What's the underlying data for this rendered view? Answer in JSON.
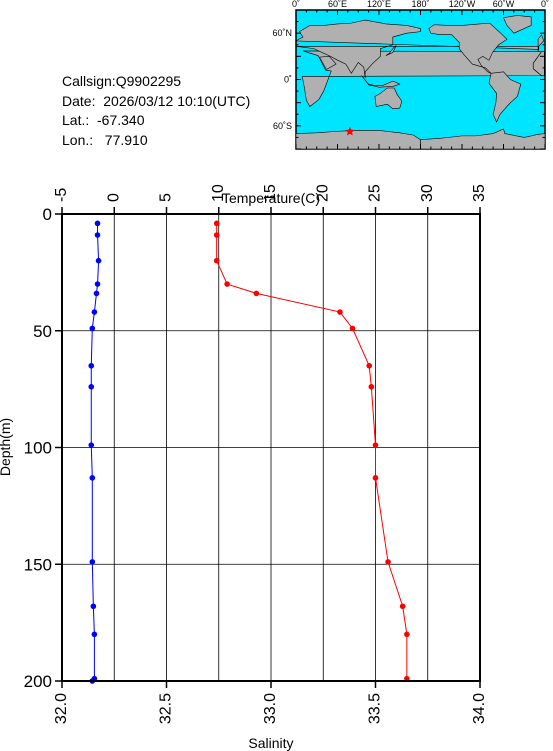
{
  "station": {
    "callsign": "Callsign:Q9902295",
    "date": "Date:  2026/03/12 10:10(UTC)",
    "lat": "Lat.:  -67.340",
    "lon": "Lon.:   77.910"
  },
  "map": {
    "lon_labels": [
      "0˚",
      "60˚E",
      "120˚E",
      "180˚",
      "120˚W",
      "60˚W",
      "0˚"
    ],
    "lat_labels": [
      "60˚N",
      "0˚",
      "60˚S"
    ],
    "colors": {
      "ocean": "#00e5ff",
      "land": "#b0b0b0",
      "marker": "#ff0000"
    },
    "marker": {
      "lat": -67.34,
      "lon": 77.91
    }
  },
  "chart_data": {
    "type": "line",
    "ylabel": "Depth(m)",
    "ylim": [
      200,
      0
    ],
    "yticks": [
      0,
      50,
      100,
      150,
      200
    ],
    "y_reversed": true,
    "grid": true,
    "axes": {
      "temperature": {
        "label": "Temperature(C)",
        "position": "top",
        "lim": [
          -5,
          35
        ],
        "ticks": [
          -5,
          0,
          5,
          10,
          15,
          20,
          25,
          30,
          35
        ]
      },
      "salinity": {
        "label": "Salinity",
        "position": "bottom",
        "lim": [
          32.0,
          34.0
        ],
        "ticks": [
          "32.0",
          "32.5",
          "33.0",
          "33.5",
          "34.0"
        ]
      }
    },
    "series": [
      {
        "axis": "temperature",
        "color": "#0000ff",
        "x": [
          -1.6,
          -1.6,
          -1.5,
          -1.6,
          -1.7,
          -1.9,
          -2.1,
          -2.2,
          -2.2,
          -2.2,
          -2.1,
          -2.1,
          -2.0,
          -1.9,
          -1.9,
          -2.1
        ],
        "y": [
          4,
          9,
          20,
          30,
          34,
          42,
          49,
          65,
          74,
          99,
          113,
          149,
          168,
          180,
          199,
          200
        ]
      },
      {
        "axis": "salinity",
        "color": "#ff0000",
        "x": [
          32.74,
          32.74,
          32.74,
          32.79,
          32.93,
          33.33,
          33.39,
          33.47,
          33.48,
          33.5,
          33.5,
          33.56,
          33.63,
          33.65,
          33.65
        ],
        "y": [
          4,
          9,
          20,
          30,
          34,
          42,
          49,
          65,
          74,
          99,
          113,
          149,
          168,
          180,
          199
        ]
      }
    ]
  }
}
